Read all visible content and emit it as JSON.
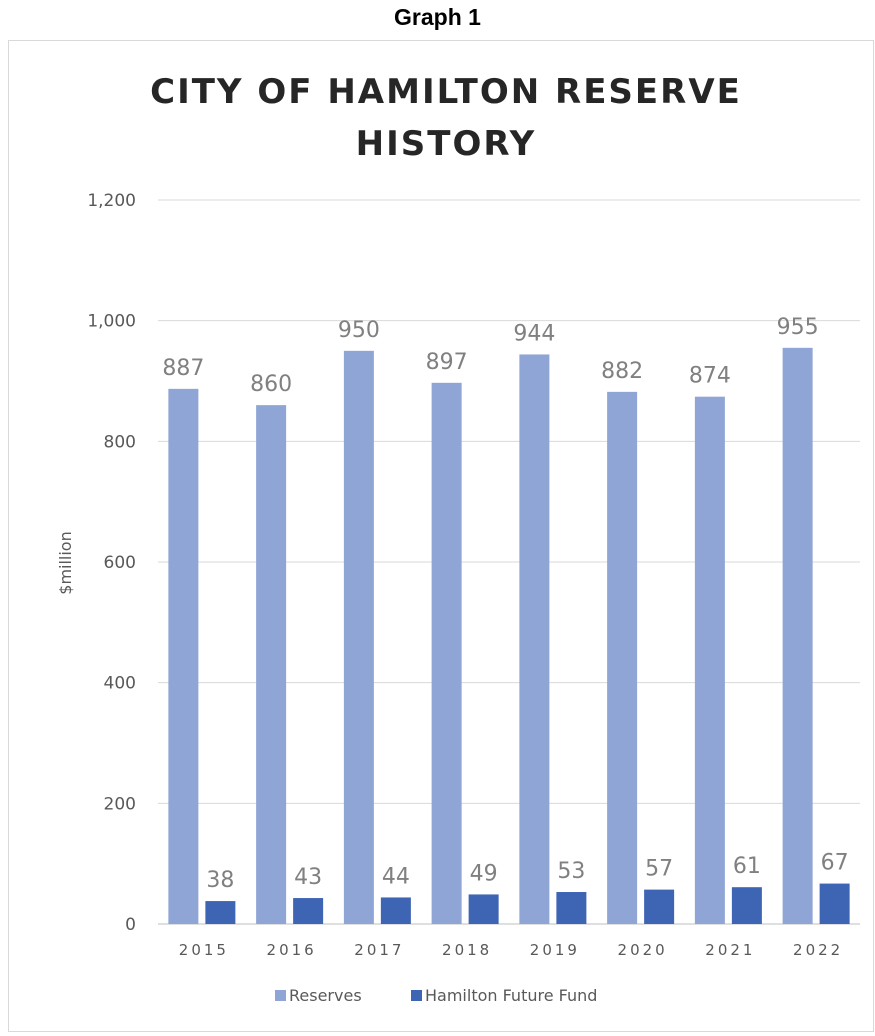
{
  "page": {
    "caption": "Graph 1"
  },
  "chart_data": {
    "type": "bar",
    "title_lines": [
      "CITY OF HAMILTON RESERVE",
      "HISTORY"
    ],
    "ylabel": "$million",
    "xlabel": "",
    "ylim": [
      0,
      1200
    ],
    "yticks": [
      0,
      200,
      400,
      600,
      800,
      1000,
      1200
    ],
    "ytick_labels": [
      "0",
      "200",
      "400",
      "600",
      "800",
      "1,000",
      "1,200"
    ],
    "categories": [
      "2015",
      "2016",
      "2017",
      "2018",
      "2019",
      "2020",
      "2021",
      "2022"
    ],
    "series": [
      {
        "name": "Reserves",
        "color": "#8FA5D6",
        "values": [
          887,
          860,
          950,
          897,
          944,
          882,
          874,
          955
        ]
      },
      {
        "name": "Hamilton Future Fund",
        "color": "#3E64B4",
        "values": [
          38,
          43,
          44,
          49,
          53,
          57,
          61,
          67
        ]
      }
    ],
    "grid": true,
    "legend_position": "bottom"
  }
}
